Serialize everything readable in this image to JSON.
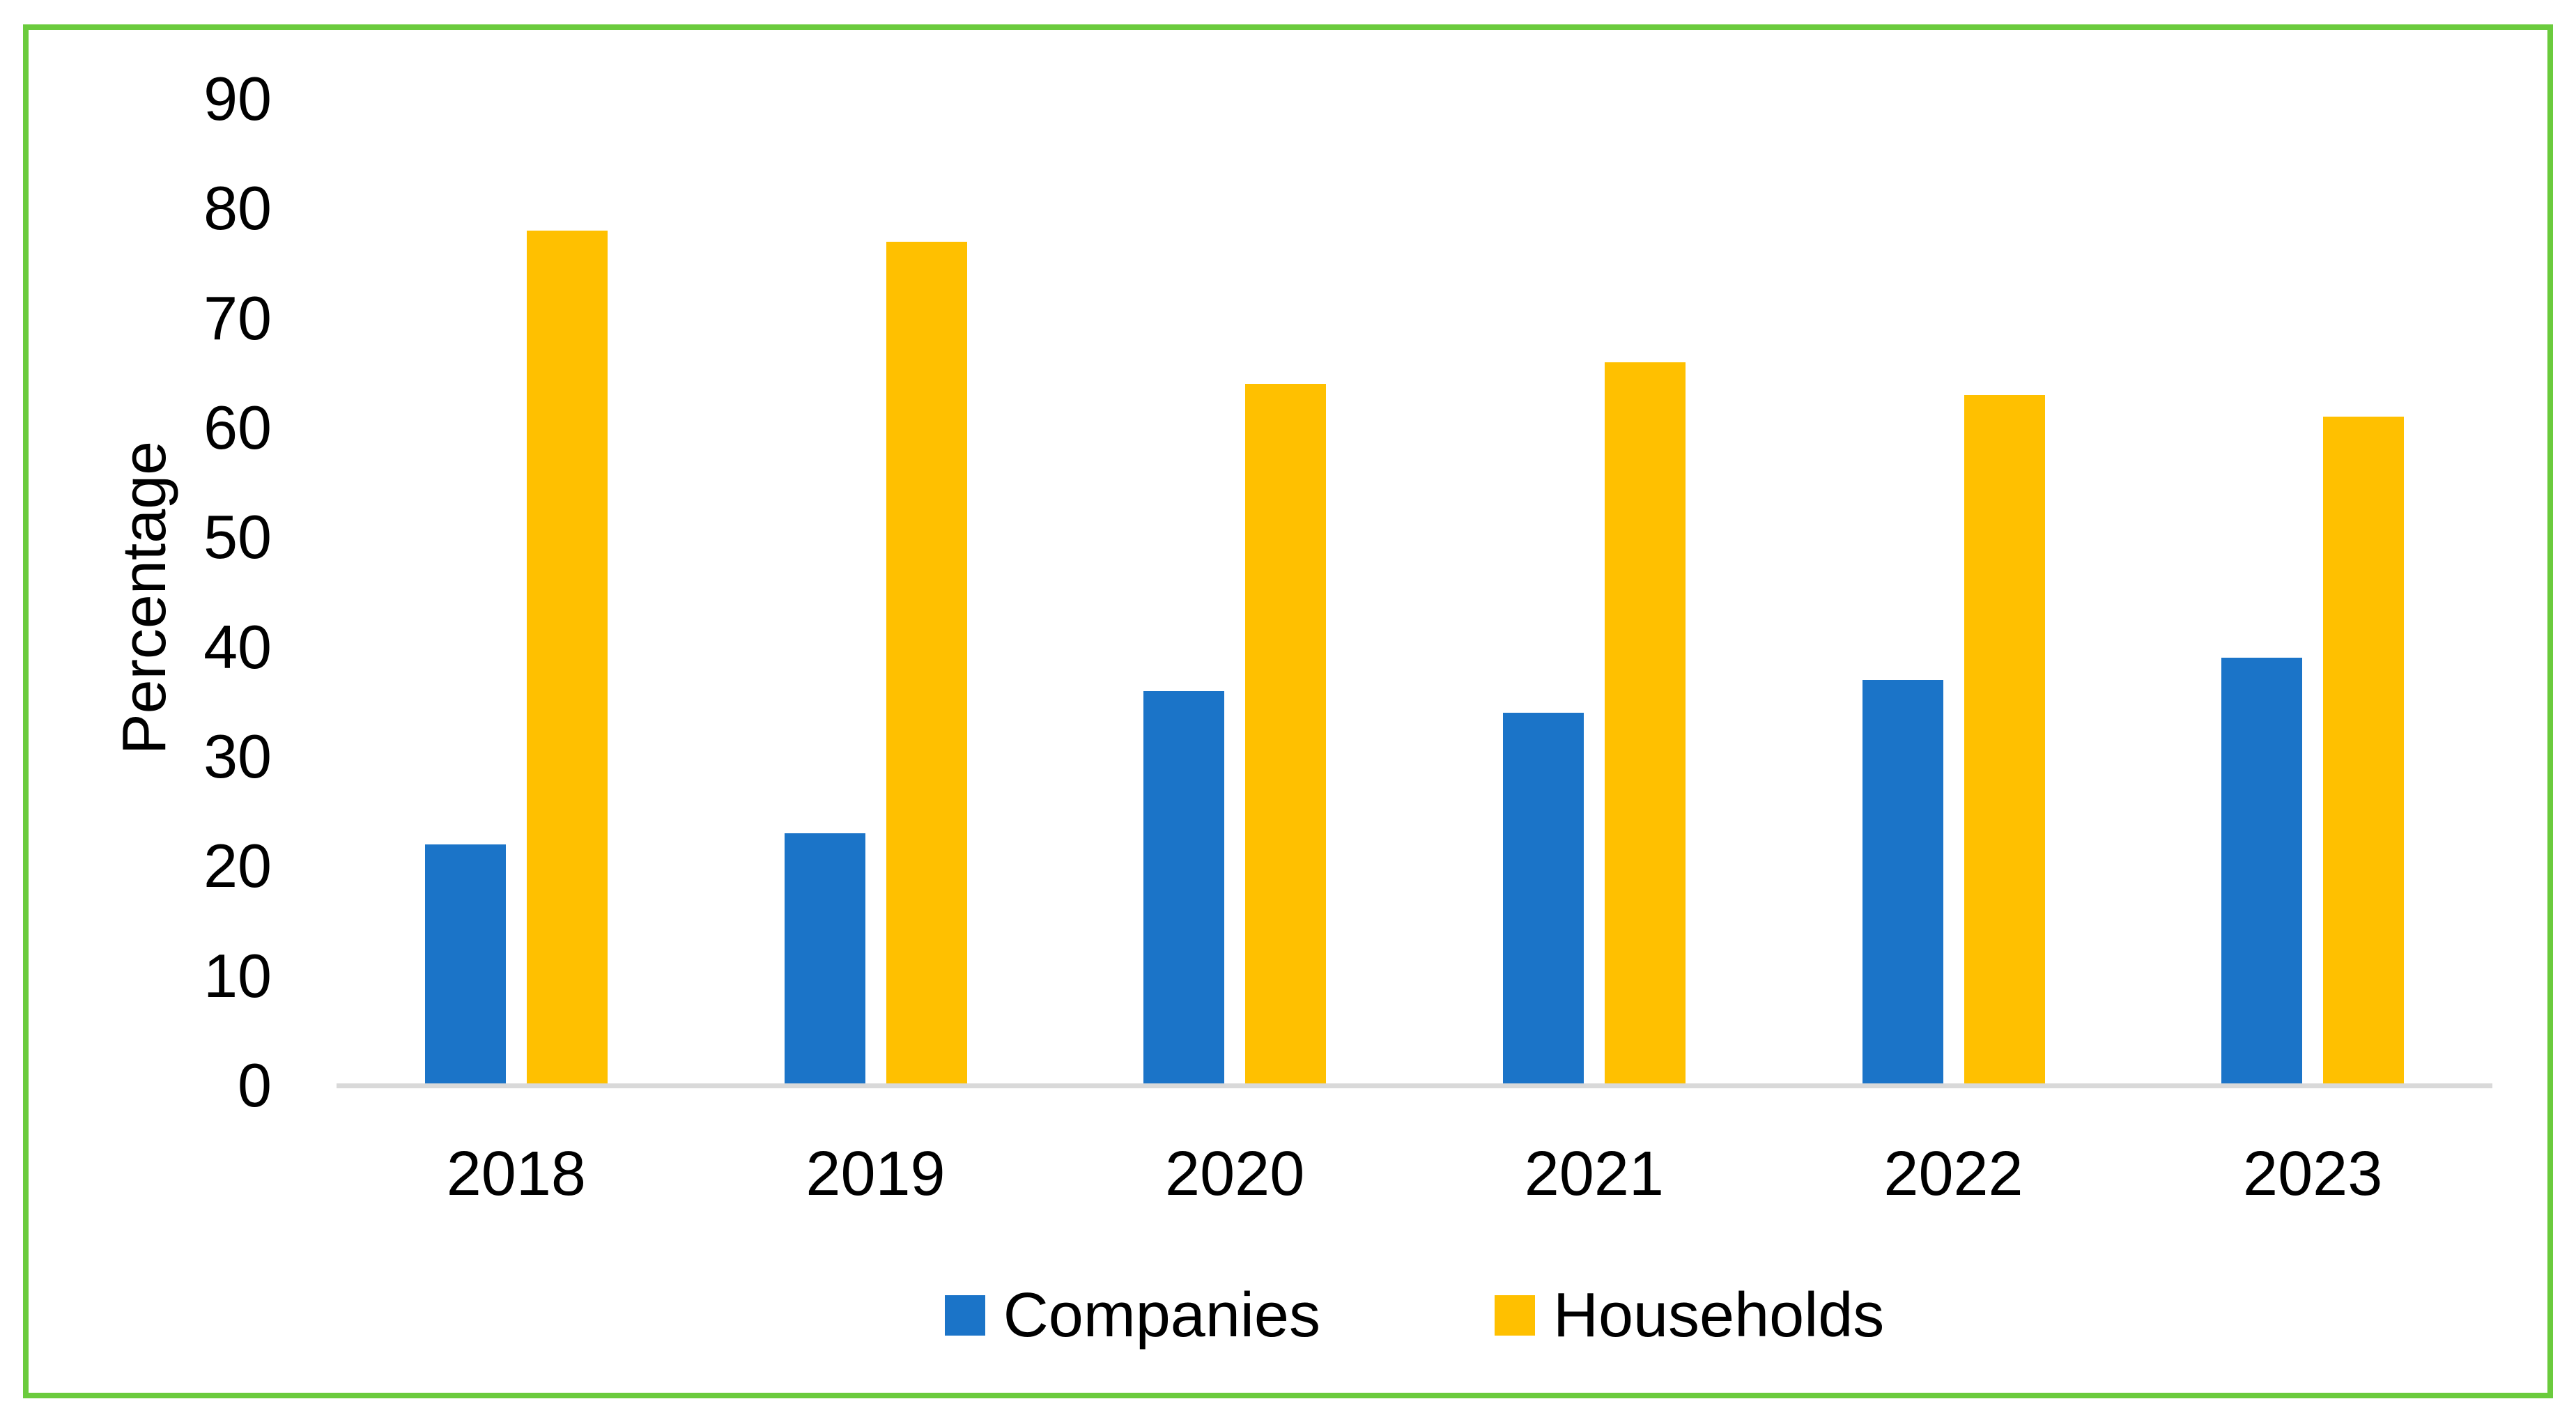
{
  "chart_data": {
    "type": "bar",
    "title": "",
    "xlabel": "",
    "ylabel": "Percentage",
    "categories": [
      "2018",
      "2019",
      "2020",
      "2021",
      "2022",
      "2023"
    ],
    "series": [
      {
        "name": "Companies",
        "color": "#1B74C8",
        "values": [
          22,
          23,
          36,
          34,
          37,
          39
        ]
      },
      {
        "name": "Households",
        "color": "#FFC000",
        "values": [
          78,
          77,
          64,
          66,
          63,
          61
        ]
      }
    ],
    "ylim": [
      0,
      90
    ],
    "yticks": [
      0,
      10,
      20,
      30,
      40,
      50,
      60,
      70,
      80,
      90
    ],
    "grid": false,
    "legend_position": "bottom",
    "axis_line_color": "#D9D9D9",
    "frame_border_color": "#6BCB3D",
    "background_color": "#FFFFFF",
    "text_color": "#000000"
  }
}
